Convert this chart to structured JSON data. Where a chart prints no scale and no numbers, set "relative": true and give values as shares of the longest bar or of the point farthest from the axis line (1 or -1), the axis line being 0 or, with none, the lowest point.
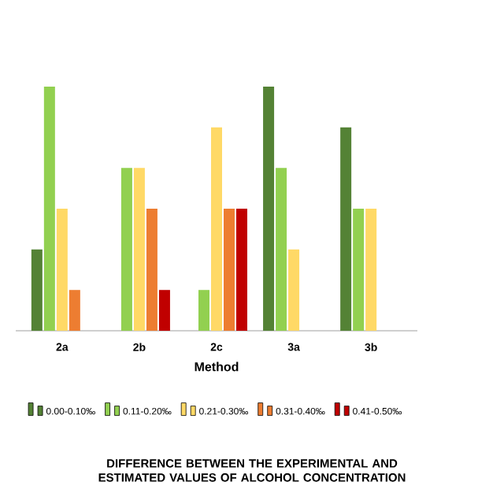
{
  "chart_data": {
    "type": "bar",
    "relative": true,
    "title": "DIFFERENCE BETWEEN THE EXPERIMENTAL AND ESTIMATED VALUES OF ALCOHOL CONCENTRATION",
    "xlabel": "Method",
    "categories": [
      "2a",
      "2b",
      "2c",
      "3a",
      "3b"
    ],
    "series": [
      {
        "name": "0.00-0.10‰",
        "color": "#548235",
        "values": [
          0.333,
          0,
          0,
          1,
          0.833
        ]
      },
      {
        "name": "0.11-0.20‰",
        "color": "#92d050",
        "values": [
          1,
          0.667,
          0.167,
          0.667,
          0.5
        ]
      },
      {
        "name": "0.21-0.30‰",
        "color": "#ffd966",
        "values": [
          0.5,
          0.667,
          0.833,
          0.333,
          0.5
        ]
      },
      {
        "name": "0.31-0.40‰",
        "color": "#ed7d31",
        "values": [
          0.167,
          0.5,
          0.5,
          0,
          null
        ]
      },
      {
        "name": "0.41-0.50‰",
        "color": "#c00000",
        "values": [
          0,
          0.167,
          0.5,
          0,
          null
        ]
      }
    ],
    "legend": "bottom"
  }
}
